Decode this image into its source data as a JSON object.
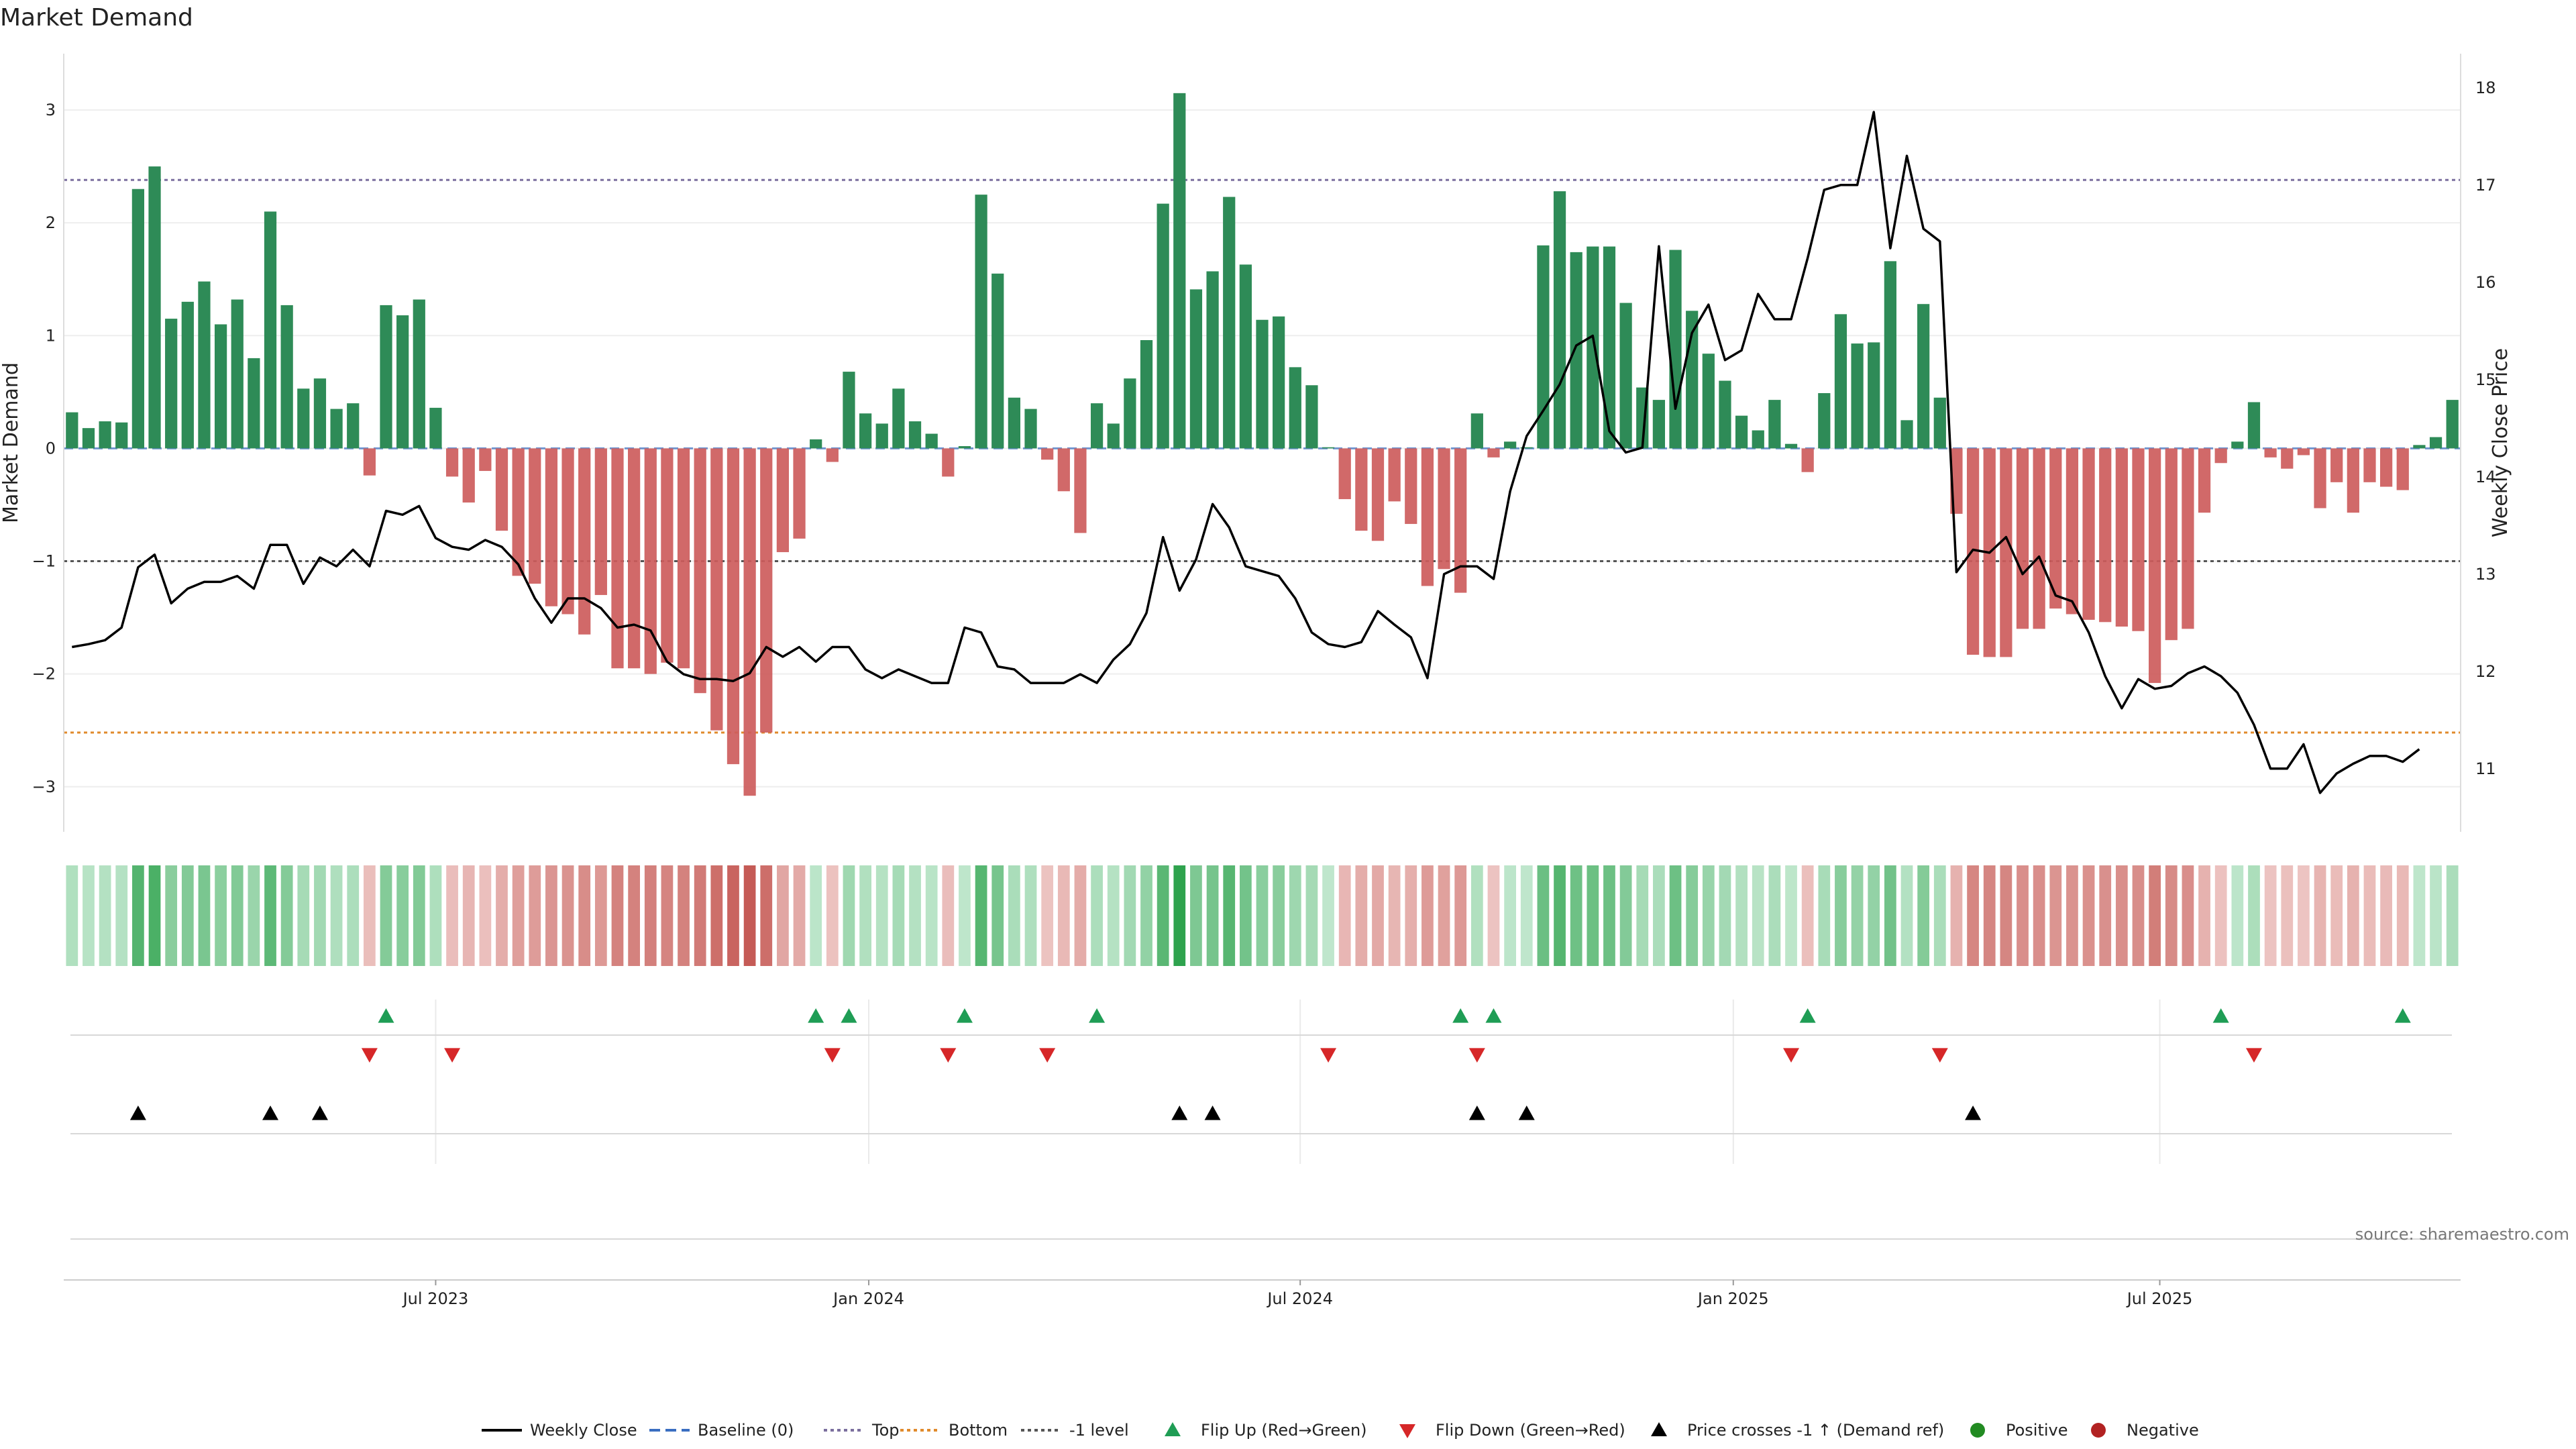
{
  "chart_data": {
    "type": "bar",
    "title": "Market Demand",
    "ylabel": "Market Demand",
    "y2label": "Weekly Close Price",
    "ylim": [
      -3.4,
      3.5
    ],
    "y2lim": [
      10.35,
      18.35
    ],
    "yticks": [
      -3,
      -2,
      -1,
      0,
      1,
      2,
      3
    ],
    "y2ticks": [
      11,
      12,
      13,
      14,
      15,
      16,
      17,
      18
    ],
    "xticks": [
      {
        "index": 22,
        "label": "Jul 2023"
      },
      {
        "index": 48.2,
        "label": "Jan 2024"
      },
      {
        "index": 74.3,
        "label": "Jul 2024"
      },
      {
        "index": 100.5,
        "label": "Jan 2025"
      },
      {
        "index": 126.3,
        "label": "Jul 2025"
      }
    ],
    "levels": {
      "top": 2.38,
      "minus_one": -1.0,
      "bottom": -2.52
    },
    "demand": [
      0.32,
      0.18,
      0.24,
      0.23,
      2.3,
      2.5,
      1.15,
      1.3,
      1.48,
      1.1,
      1.32,
      0.8,
      2.1,
      1.27,
      0.53,
      0.62,
      0.35,
      0.4,
      -0.24,
      1.27,
      1.18,
      1.32,
      0.36,
      -0.25,
      -0.48,
      -0.2,
      -0.73,
      -1.13,
      -1.2,
      -1.4,
      -1.47,
      -1.65,
      -1.3,
      -1.95,
      -1.95,
      -2.0,
      -1.9,
      -1.95,
      -2.17,
      -2.5,
      -2.8,
      -3.08,
      -2.52,
      -0.92,
      -0.8,
      0.08,
      -0.12,
      0.68,
      0.31,
      0.22,
      0.53,
      0.24,
      0.13,
      -0.25,
      0.02,
      2.25,
      1.55,
      0.45,
      0.35,
      -0.1,
      -0.38,
      -0.75,
      0.4,
      0.22,
      0.62,
      0.96,
      2.17,
      3.15,
      1.41,
      1.57,
      2.23,
      1.63,
      1.14,
      1.17,
      0.72,
      0.56,
      0.01,
      -0.45,
      -0.73,
      -0.82,
      -0.47,
      -0.67,
      -1.22,
      -1.07,
      -1.28,
      0.31,
      -0.08,
      0.06,
      0.01,
      1.8,
      2.28,
      1.74,
      1.79,
      1.79,
      1.29,
      0.54,
      0.43,
      1.76,
      1.22,
      0.84,
      0.6,
      0.29,
      0.16,
      0.43,
      0.04,
      -0.21,
      0.49,
      1.19,
      0.93,
      0.94,
      1.66,
      0.25,
      1.28,
      0.45,
      -0.58,
      -1.83,
      -1.85,
      -1.85,
      -1.6,
      -1.6,
      -1.42,
      -1.47,
      -1.52,
      -1.54,
      -1.58,
      -1.62,
      -2.08,
      -1.7,
      -1.6,
      -0.57,
      -0.13,
      0.06,
      0.41,
      -0.08,
      -0.18,
      -0.06,
      -0.53,
      -0.3,
      -0.57,
      -0.3,
      -0.34,
      -0.37,
      0.03,
      0.1,
      0.43
    ],
    "close": [
      12.25,
      12.28,
      12.32,
      12.45,
      13.07,
      13.2,
      12.7,
      12.85,
      12.92,
      12.92,
      12.98,
      12.85,
      13.3,
      13.3,
      12.9,
      13.17,
      13.08,
      13.25,
      13.08,
      13.65,
      13.61,
      13.7,
      13.37,
      13.28,
      13.25,
      13.35,
      13.28,
      13.1,
      12.75,
      12.5,
      12.75,
      12.75,
      12.65,
      12.45,
      12.48,
      12.42,
      12.1,
      11.97,
      11.92,
      11.92,
      11.9,
      11.98,
      12.25,
      12.15,
      12.25,
      12.1,
      12.25,
      12.25,
      12.02,
      11.93,
      12.02,
      11.95,
      11.88,
      11.88,
      12.45,
      12.4,
      12.05,
      12.02,
      11.88,
      11.88,
      11.88,
      11.97,
      11.88,
      12.12,
      12.28,
      12.6,
      13.38,
      12.83,
      13.15,
      13.72,
      13.48,
      13.08,
      13.03,
      12.98,
      12.75,
      12.4,
      12.28,
      12.25,
      12.3,
      12.62,
      12.48,
      12.35,
      11.93,
      13.0,
      13.08,
      13.08,
      12.95,
      13.85,
      14.42,
      14.68,
      14.95,
      15.35,
      15.45,
      14.47,
      14.25,
      14.3,
      16.37,
      14.7,
      15.48,
      15.77,
      15.2,
      15.3,
      15.88,
      15.62,
      15.62,
      16.25,
      16.95,
      17.0,
      17.0,
      17.75,
      16.35,
      17.3,
      16.55,
      16.42,
      13.02,
      13.25,
      13.22,
      13.38,
      13.0,
      13.18,
      12.78,
      12.72,
      12.4,
      11.95,
      11.62,
      11.92,
      11.82,
      11.85,
      11.98,
      12.05,
      11.95,
      11.78,
      11.45,
      11.0,
      11.0,
      11.25,
      10.75,
      10.95,
      11.05,
      11.13,
      11.13,
      11.07,
      11.2
    ],
    "flip_up": [
      19,
      45,
      47,
      54,
      62,
      84,
      86,
      105,
      130,
      141
    ],
    "flip_down": [
      18,
      23,
      46,
      53,
      59,
      76,
      85,
      104,
      113,
      132
    ],
    "price_cross": [
      4,
      12,
      15,
      67,
      69,
      85,
      88,
      115
    ],
    "legend": [
      {
        "label": "Weekly Close",
        "marker": "line",
        "color": "#000000"
      },
      {
        "label": "Baseline (0)",
        "marker": "dash",
        "color": "#3a6ec1"
      },
      {
        "label": "Top",
        "marker": "dot",
        "color": "#7b6f9e"
      },
      {
        "label": "Bottom",
        "marker": "dot",
        "color": "#e08b2c"
      },
      {
        "label": "-1 level",
        "marker": "dot",
        "color": "#555555"
      },
      {
        "label": "Flip Up (Red→Green)",
        "marker": "tri-up",
        "color": "#1f9d55"
      },
      {
        "label": "Flip Down (Green→Red)",
        "marker": "tri-down",
        "color": "#d62728"
      },
      {
        "label": "Price crosses -1 ↑ (Demand ref)",
        "marker": "tri-up",
        "color": "#000000"
      },
      {
        "label": "Positive",
        "marker": "circle",
        "color": "#228b22"
      },
      {
        "label": "Negative",
        "marker": "circle",
        "color": "#b22222"
      }
    ],
    "colors": {
      "positive": "#2e8b57",
      "negative": "#cd5c5c",
      "top": "#7b6f9e",
      "bottom": "#e08b2c",
      "minus_one": "#555555",
      "baseline": "#3a6ec1"
    }
  },
  "source_text": "source: sharemaestro.com"
}
